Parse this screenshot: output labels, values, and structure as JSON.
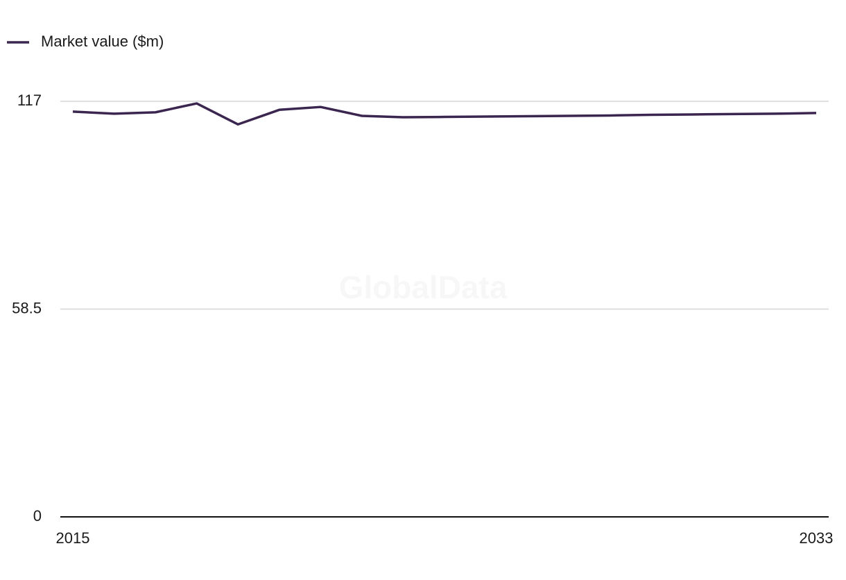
{
  "chart_data": {
    "type": "line",
    "watermark": "GlobalData",
    "x": [
      2015,
      2016,
      2017,
      2018,
      2019,
      2020,
      2021,
      2022,
      2023,
      2024,
      2025,
      2026,
      2027,
      2028,
      2029,
      2030,
      2031,
      2032,
      2033
    ],
    "series": [
      {
        "name": "Market value ($m)",
        "color": "#3b2650",
        "values": [
          114.1,
          113.5,
          113.9,
          116.4,
          110.5,
          114.6,
          115.4,
          112.9,
          112.5,
          112.6,
          112.7,
          112.8,
          112.9,
          113.0,
          113.2,
          113.3,
          113.4,
          113.5,
          113.7
        ]
      }
    ],
    "xlim": [
      2015,
      2033
    ],
    "xticks": [
      2015,
      2033
    ],
    "ylim": [
      0,
      117
    ],
    "yticks": [
      0,
      58.5,
      117
    ],
    "grid": true
  }
}
